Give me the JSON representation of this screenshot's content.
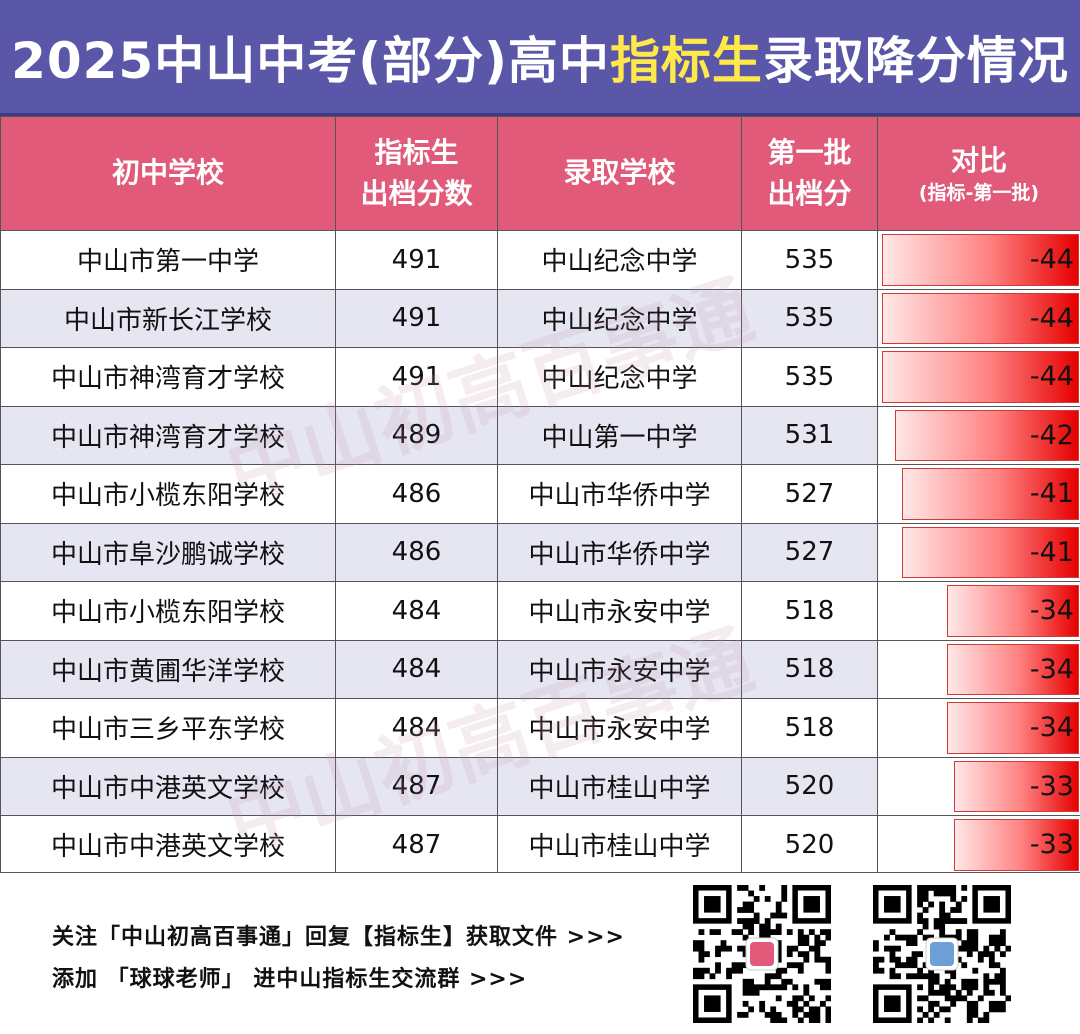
{
  "title": {
    "pre": "2025中山中考(部分)高中",
    "highlight": "指标生",
    "post": "录取降分情况"
  },
  "headers": {
    "col1": "初中学校",
    "col2_line1": "指标生",
    "col2_line2": "出档分数",
    "col3": "录取学校",
    "col4_line1": "第一批",
    "col4_line2": "出档分",
    "col5_line1": "对比",
    "col5_line2": "(指标-第一批)"
  },
  "rows": [
    {
      "school": "中山市第一中学",
      "quota_score": "491",
      "admit_school": "中山纪念中学",
      "first_batch": "535",
      "diff": "-44",
      "diff_value": -44
    },
    {
      "school": "中山市新长江学校",
      "quota_score": "491",
      "admit_school": "中山纪念中学",
      "first_batch": "535",
      "diff": "-44",
      "diff_value": -44
    },
    {
      "school": "中山市神湾育才学校",
      "quota_score": "491",
      "admit_school": "中山纪念中学",
      "first_batch": "535",
      "diff": "-44",
      "diff_value": -44
    },
    {
      "school": "中山市神湾育才学校",
      "quota_score": "489",
      "admit_school": "中山第一中学",
      "first_batch": "531",
      "diff": "-42",
      "diff_value": -42
    },
    {
      "school": "中山市小榄东阳学校",
      "quota_score": "486",
      "admit_school": "中山市华侨中学",
      "first_batch": "527",
      "diff": "-41",
      "diff_value": -41
    },
    {
      "school": "中山市阜沙鹏诚学校",
      "quota_score": "486",
      "admit_school": "中山市华侨中学",
      "first_batch": "527",
      "diff": "-41",
      "diff_value": -41
    },
    {
      "school": "中山市小榄东阳学校",
      "quota_score": "484",
      "admit_school": "中山市永安中学",
      "first_batch": "518",
      "diff": "-34",
      "diff_value": -34
    },
    {
      "school": "中山市黄圃华洋学校",
      "quota_score": "484",
      "admit_school": "中山市永安中学",
      "first_batch": "518",
      "diff": "-34",
      "diff_value": -34
    },
    {
      "school": "中山市三乡平东学校",
      "quota_score": "484",
      "admit_school": "中山市永安中学",
      "first_batch": "518",
      "diff": "-34",
      "diff_value": -34
    },
    {
      "school": "中山市中港英文学校",
      "quota_score": "487",
      "admit_school": "中山市桂山中学",
      "first_batch": "520",
      "diff": "-33",
      "diff_value": -33
    },
    {
      "school": "中山市中港英文学校",
      "quota_score": "487",
      "admit_school": "中山市桂山中学",
      "first_batch": "520",
      "diff": "-33",
      "diff_value": -33
    }
  ],
  "bar_scale_max": 44,
  "watermark": "中山初高百事通",
  "footer": {
    "line1": "关注「中山初高百事通」回复【指标生】获取文件 >>>",
    "line2": "添加 「球球老师」 进中山指标生交流群 >>>"
  },
  "colors": {
    "title_bg": "#5a56a8",
    "title_highlight": "#ffe94a",
    "header_bg": "#e25a7a",
    "row_alt": "#e6e6f2",
    "bar_end": "#e60000"
  }
}
